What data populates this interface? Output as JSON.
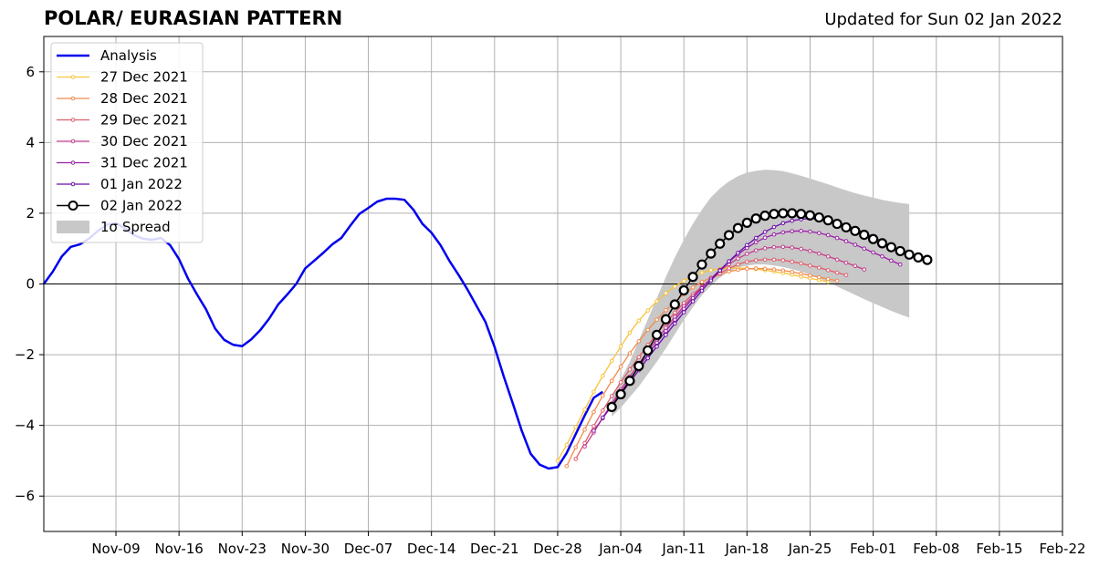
{
  "header": {
    "title": "POLAR/ EURASIAN  PATTERN",
    "updated": "Updated for Sun 02 Jan 2022"
  },
  "chart_data": {
    "type": "line",
    "ylim": [
      -7,
      7
    ],
    "yticks": [
      -6,
      -4,
      -2,
      0,
      2,
      4,
      6
    ],
    "ytick_labels": [
      "−6",
      "−4",
      "−2",
      "0",
      "2",
      "4",
      "6"
    ],
    "xlim": [
      "2021-11-01",
      "2022-02-22"
    ],
    "xticks": [
      "2021-11-09",
      "2021-11-16",
      "2021-11-23",
      "2021-11-30",
      "2021-12-07",
      "2021-12-14",
      "2021-12-21",
      "2021-12-28",
      "2022-01-04",
      "2022-01-11",
      "2022-01-18",
      "2022-01-25",
      "2022-02-01",
      "2022-02-08",
      "2022-02-15",
      "2022-02-22"
    ],
    "xtick_labels": [
      "Nov-09",
      "Nov-16",
      "Nov-23",
      "Nov-30",
      "Dec-07",
      "Dec-14",
      "Dec-21",
      "Dec-28",
      "Jan-04",
      "Jan-11",
      "Jan-18",
      "Jan-25",
      "Feb-01",
      "Feb-08",
      "Feb-15",
      "Feb-22"
    ],
    "grid": true,
    "zero_line": true,
    "legend_position": "top-left",
    "analysis": {
      "name": "Analysis",
      "color": "#0000ee",
      "x": [
        "2021-11-01",
        "2021-11-02",
        "2021-11-03",
        "2021-11-04",
        "2021-11-05",
        "2021-11-06",
        "2021-11-07",
        "2021-11-08",
        "2021-11-09",
        "2021-11-10",
        "2021-11-11",
        "2021-11-12",
        "2021-11-13",
        "2021-11-14",
        "2021-11-15",
        "2021-11-16",
        "2021-11-17",
        "2021-11-18",
        "2021-11-19",
        "2021-11-20",
        "2021-11-21",
        "2021-11-22",
        "2021-11-23",
        "2021-11-24",
        "2021-11-25",
        "2021-11-26",
        "2021-11-27",
        "2021-11-28",
        "2021-11-29",
        "2021-11-30",
        "2021-12-01",
        "2021-12-02",
        "2021-12-03",
        "2021-12-04",
        "2021-12-05",
        "2021-12-06",
        "2021-12-07",
        "2021-12-08",
        "2021-12-09",
        "2021-12-10",
        "2021-12-11",
        "2021-12-12",
        "2021-12-13",
        "2021-12-14",
        "2021-12-15",
        "2021-12-16",
        "2021-12-17",
        "2021-12-18",
        "2021-12-19",
        "2021-12-20",
        "2021-12-21",
        "2021-12-22",
        "2021-12-23",
        "2021-12-24",
        "2021-12-25",
        "2021-12-26",
        "2021-12-27",
        "2021-12-28",
        "2021-12-29",
        "2021-12-30",
        "2021-12-31",
        "2022-01-01",
        "2022-01-02",
        "2022-01-03"
      ],
      "y": [
        0.0,
        0.35,
        0.78,
        1.05,
        1.12,
        1.28,
        1.5,
        1.68,
        1.72,
        1.58,
        1.38,
        1.28,
        1.25,
        1.3,
        1.1,
        0.7,
        0.15,
        -0.3,
        -0.72,
        -1.26,
        -1.58,
        -1.72,
        -1.76,
        -1.57,
        -1.31,
        -0.98,
        -0.58,
        -0.3,
        0.0,
        0.44,
        0.66,
        0.88,
        1.12,
        1.3,
        1.65,
        1.98,
        2.15,
        2.33,
        2.41,
        2.41,
        2.38,
        2.1,
        1.7,
        1.45,
        1.1,
        0.65,
        0.26,
        -0.16,
        -0.62,
        -1.08,
        -1.78,
        -2.6,
        -3.36,
        -4.14,
        -4.8,
        -5.11,
        -5.22,
        -5.18,
        -4.78,
        -4.25,
        -3.72,
        -3.22,
        -3.05,
        null
      ]
    },
    "series": [
      {
        "name": "27 Dec 2021",
        "color": "#f8c339",
        "start": "2021-12-28",
        "values": [
          -5.0,
          -4.55,
          -4.05,
          -3.55,
          -3.05,
          -2.6,
          -2.18,
          -1.77,
          -1.38,
          -1.04,
          -0.75,
          -0.49,
          -0.26,
          -0.07,
          0.09,
          0.22,
          0.32,
          0.39,
          0.43,
          0.45,
          0.45,
          0.44,
          0.42,
          0.39,
          0.35,
          0.31,
          0.26,
          0.21,
          0.16,
          0.11,
          0.06
        ]
      },
      {
        "name": "28 Dec 2021",
        "color": "#f38a4c",
        "start": "2021-12-29",
        "values": [
          -5.15,
          -4.62,
          -4.12,
          -3.62,
          -3.16,
          -2.74,
          -2.34,
          -1.96,
          -1.62,
          -1.3,
          -1.01,
          -0.74,
          -0.5,
          -0.29,
          -0.1,
          0.06,
          0.18,
          0.28,
          0.35,
          0.4,
          0.43,
          0.44,
          0.43,
          0.41,
          0.38,
          0.34,
          0.29,
          0.24,
          0.19,
          0.14,
          0.09
        ]
      },
      {
        "name": "29 Dec 2021",
        "color": "#e05c6c",
        "start": "2021-12-30",
        "values": [
          -4.95,
          -4.5,
          -4.02,
          -3.58,
          -3.17,
          -2.78,
          -2.42,
          -2.07,
          -1.73,
          -1.41,
          -1.1,
          -0.81,
          -0.54,
          -0.29,
          -0.07,
          0.13,
          0.3,
          0.44,
          0.55,
          0.63,
          0.67,
          0.69,
          0.69,
          0.67,
          0.63,
          0.58,
          0.52,
          0.46,
          0.39,
          0.32,
          0.25
        ]
      },
      {
        "name": "30 Dec 2021",
        "color": "#c33f8a",
        "start": "2021-12-31",
        "values": [
          -4.6,
          -4.2,
          -3.78,
          -3.38,
          -2.99,
          -2.62,
          -2.26,
          -1.91,
          -1.57,
          -1.24,
          -0.93,
          -0.63,
          -0.35,
          -0.09,
          0.15,
          0.37,
          0.56,
          0.72,
          0.85,
          0.95,
          1.01,
          1.04,
          1.05,
          1.03,
          0.99,
          0.93,
          0.86,
          0.78,
          0.69,
          0.6,
          0.51,
          0.41
        ]
      },
      {
        "name": "31 Dec 2021",
        "color": "#9a1fa7",
        "start": "2022-01-01",
        "values": [
          -4.15,
          -3.8,
          -3.43,
          -3.06,
          -2.7,
          -2.35,
          -2.0,
          -1.66,
          -1.33,
          -1.01,
          -0.7,
          -0.4,
          -0.12,
          0.15,
          0.4,
          0.63,
          0.84,
          1.02,
          1.18,
          1.31,
          1.4,
          1.46,
          1.49,
          1.5,
          1.48,
          1.44,
          1.38,
          1.3,
          1.21,
          1.11,
          1.0,
          0.89,
          0.78,
          0.66,
          0.55
        ]
      },
      {
        "name": "01 Jan 2022",
        "color": "#6a0cab",
        "start": "2022-01-02",
        "values": [
          -3.78,
          -3.46,
          -3.12,
          -2.78,
          -2.44,
          -2.1,
          -1.77,
          -1.44,
          -1.12,
          -0.8,
          -0.49,
          -0.19,
          0.1,
          0.38,
          0.64,
          0.88,
          1.1,
          1.3,
          1.47,
          1.61,
          1.72,
          1.79,
          1.83,
          1.85,
          1.84,
          1.8,
          1.74,
          1.66,
          1.56,
          1.45,
          1.33,
          1.2,
          1.07,
          0.93,
          0.8
        ]
      },
      {
        "name": "02 Jan 2022",
        "color": "#000000",
        "start": "2022-01-03",
        "values": [
          -3.48,
          -3.12,
          -2.74,
          -2.32,
          -1.88,
          -1.44,
          -1.0,
          -0.58,
          -0.18,
          0.2,
          0.55,
          0.86,
          1.14,
          1.38,
          1.58,
          1.73,
          1.85,
          1.93,
          1.98,
          2.0,
          2.0,
          1.98,
          1.94,
          1.88,
          1.8,
          1.7,
          1.6,
          1.5,
          1.39,
          1.27,
          1.15,
          1.04,
          0.93,
          0.83,
          0.75,
          0.68
        ]
      }
    ],
    "spread": {
      "name": "1σ Spread",
      "color": "#c8c8c8",
      "start": "2022-01-03",
      "upper": [
        -3.2,
        -2.7,
        -2.2,
        -1.6,
        -1.0,
        -0.4,
        0.2,
        0.75,
        1.25,
        1.7,
        2.1,
        2.45,
        2.7,
        2.9,
        3.05,
        3.15,
        3.2,
        3.23,
        3.22,
        3.19,
        3.13,
        3.06,
        2.98,
        2.9,
        2.82,
        2.73,
        2.65,
        2.57,
        2.5,
        2.44,
        2.38,
        2.33,
        2.29,
        2.26
      ],
      "lower": [
        -3.75,
        -3.5,
        -3.2,
        -2.9,
        -2.55,
        -2.2,
        -1.82,
        -1.42,
        -1.02,
        -0.66,
        -0.32,
        -0.05,
        0.18,
        0.35,
        0.46,
        0.52,
        0.55,
        0.55,
        0.52,
        0.48,
        0.42,
        0.35,
        0.26,
        0.16,
        0.05,
        -0.07,
        -0.19,
        -0.31,
        -0.43,
        -0.54,
        -0.65,
        -0.76,
        -0.86,
        -0.95
      ]
    }
  }
}
